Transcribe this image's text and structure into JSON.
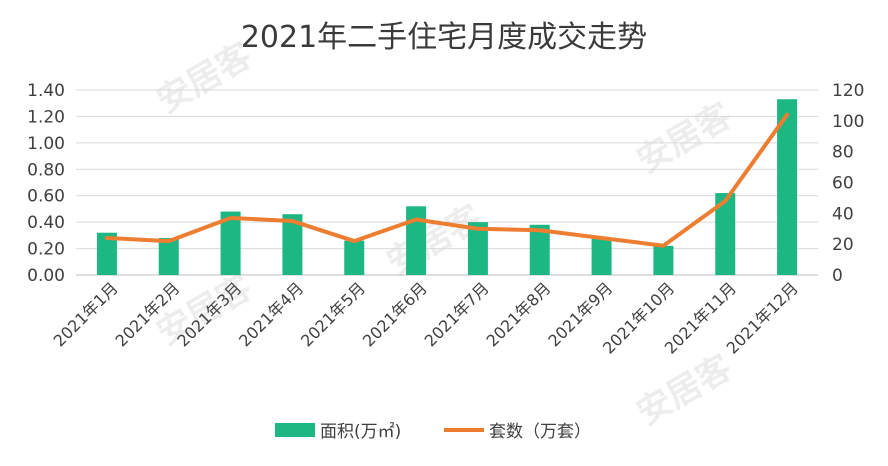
{
  "chart_data": {
    "type": "bar",
    "title": "2021年二手住宅月度成交走势",
    "watermark": "安居客",
    "categories": [
      "2021年1月",
      "2021年2月",
      "2021年3月",
      "2021年4月",
      "2021年5月",
      "2021年6月",
      "2021年7月",
      "2021年8月",
      "2021年9月",
      "2021年10月",
      "2021年11月",
      "2021年12月"
    ],
    "series": [
      {
        "name": "面积(万㎡)",
        "type": "bar",
        "axis": "left",
        "color": "#1db784",
        "values": [
          0.32,
          0.28,
          0.48,
          0.46,
          0.26,
          0.52,
          0.4,
          0.38,
          0.28,
          0.22,
          0.62,
          1.33
        ]
      },
      {
        "name": "套数（万套）",
        "type": "line",
        "axis": "right",
        "color": "#ed7d31",
        "values": [
          24,
          22,
          37,
          35,
          22,
          36,
          30,
          29,
          24,
          19,
          48,
          104
        ]
      }
    ],
    "y_left": {
      "min": 0,
      "max": 1.4,
      "ticks": [
        "0.00",
        "0.20",
        "0.40",
        "0.60",
        "0.80",
        "1.00",
        "1.20",
        "1.40"
      ]
    },
    "y_right": {
      "min": 0,
      "max": 120,
      "ticks": [
        "0",
        "20",
        "40",
        "60",
        "80",
        "100",
        "120"
      ]
    },
    "grid": true,
    "legend_position": "bottom"
  }
}
